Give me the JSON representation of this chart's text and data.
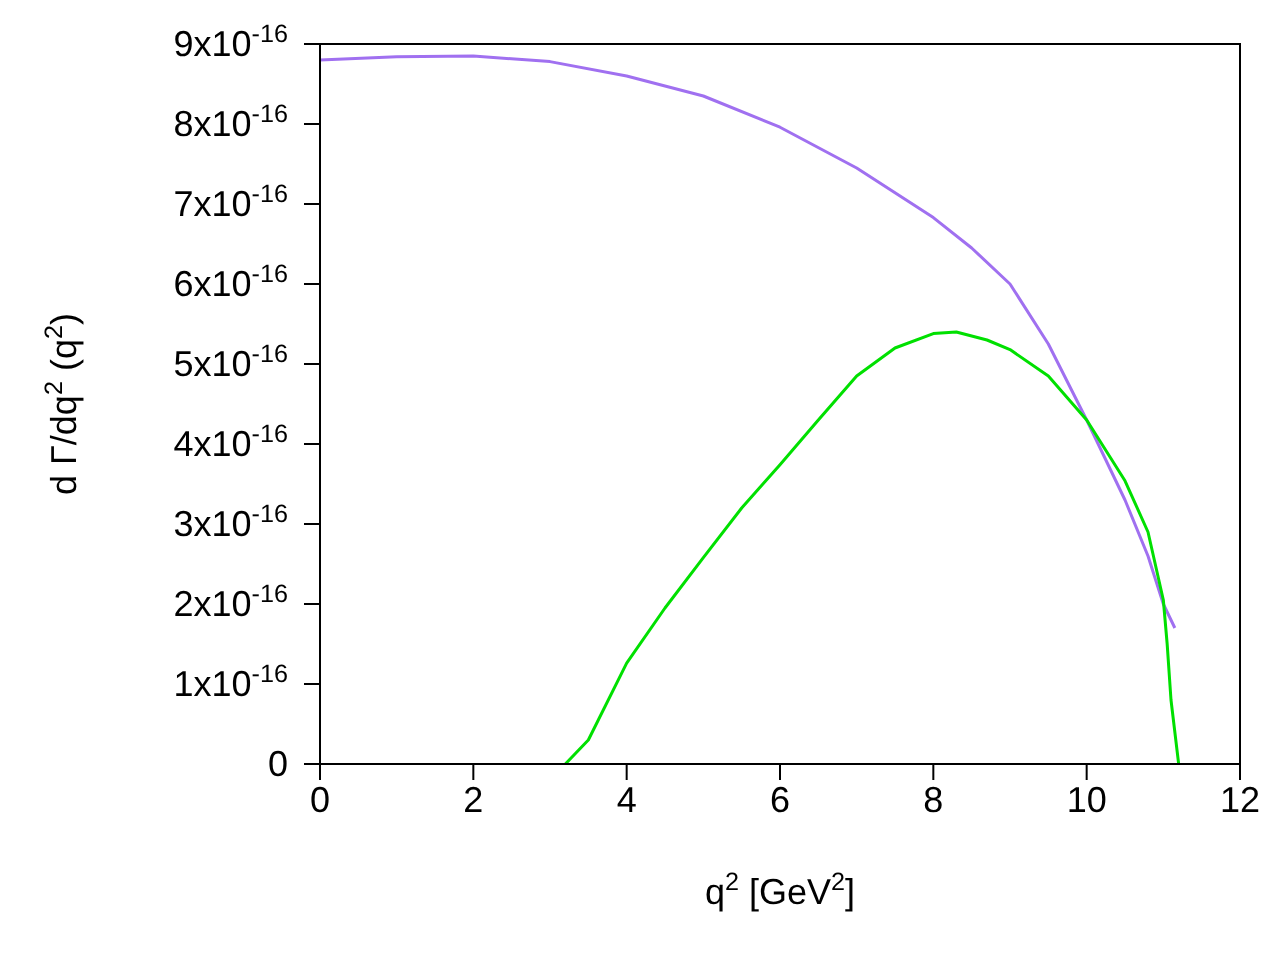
{
  "chart_data": {
    "type": "line",
    "xlabel": "q$^{2}$ [GeV$^{2}$]",
    "ylabel": "d Γ/dq$^{2}$ (q$^{2}$)",
    "xlim": [
      0,
      12
    ],
    "xticks": [
      0,
      2,
      4,
      6,
      8,
      10,
      12
    ],
    "ylim": [
      0,
      9e-16
    ],
    "yticks": [
      0,
      {
        "value": 1e-16,
        "label": "1x10$^{-16}$"
      },
      {
        "value": 2e-16,
        "label": "2x10$^{-16}$"
      },
      {
        "value": 3e-16,
        "label": "3x10$^{-16}$"
      },
      {
        "value": 4e-16,
        "label": "4x10$^{-16}$"
      },
      {
        "value": 5e-16,
        "label": "5x10$^{-16}$"
      },
      {
        "value": 6e-16,
        "label": "6x10$^{-16}$"
      },
      {
        "value": 7e-16,
        "label": "7x10$^{-16}$"
      },
      {
        "value": 8e-16,
        "label": "8x10$^{-16}$"
      },
      {
        "value": 9e-16,
        "label": "9x10$^{-16}$"
      }
    ],
    "grid": false,
    "legend": false,
    "marker": "none",
    "line_style": "solid",
    "series": [
      {
        "color": "#a070f0",
        "x": [
          0,
          1,
          2,
          3,
          4,
          5,
          6,
          7,
          8,
          8.5,
          9,
          9.5,
          10,
          10.5,
          10.8,
          11,
          11.15
        ],
        "values": [
          8.8e-16,
          8.84e-16,
          8.85e-16,
          8.78e-16,
          8.6e-16,
          8.35e-16,
          7.96e-16,
          7.45e-16,
          6.83e-16,
          6.45e-16,
          6e-16,
          5.25e-16,
          4.3e-16,
          3.3e-16,
          2.6e-16,
          2e-16,
          1.7e-16
        ]
      },
      {
        "color": "#00e000",
        "x": [
          3.2,
          3.5,
          4,
          4.5,
          5,
          5.5,
          6,
          6.5,
          7,
          7.5,
          8,
          8.3,
          8.7,
          9,
          9.5,
          10,
          10.5,
          10.8,
          11,
          11.05,
          11.1,
          11.2
        ],
        "values": [
          0,
          3e-17,
          1.26e-16,
          1.95e-16,
          2.58e-16,
          3.2e-16,
          3.74e-16,
          4.3e-16,
          4.85e-16,
          5.2e-16,
          5.38e-16,
          5.4e-16,
          5.3e-16,
          5.18e-16,
          4.85e-16,
          4.3e-16,
          3.54e-16,
          2.9e-16,
          2.05e-16,
          1.5e-16,
          8e-17,
          0
        ]
      }
    ]
  }
}
